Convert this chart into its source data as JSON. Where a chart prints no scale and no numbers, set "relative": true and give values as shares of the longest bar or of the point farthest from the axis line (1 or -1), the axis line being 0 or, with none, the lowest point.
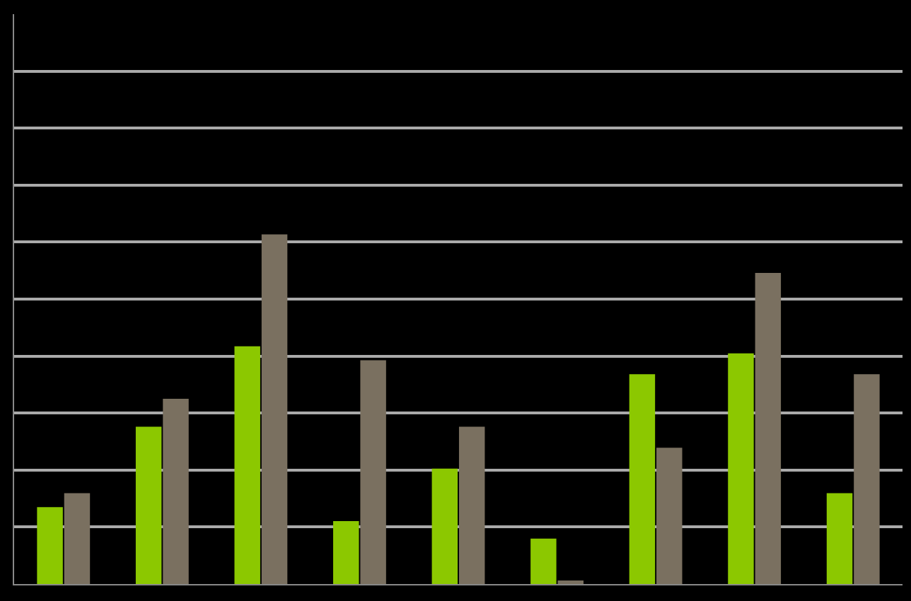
{
  "chart_data": {
    "type": "bar",
    "relative": true,
    "grid": "y",
    "categories": [
      null,
      null,
      null,
      null,
      null,
      null,
      null,
      null,
      null
    ],
    "series": [
      {
        "color": "#8cc800",
        "values": [
          0.22,
          0.45,
          0.68,
          0.18,
          0.33,
          0.13,
          0.6,
          0.66,
          0.26
        ]
      },
      {
        "color": "#7a7060",
        "values": [
          0.26,
          0.53,
          1,
          0.64,
          0.45,
          0.01,
          0.39,
          0.89,
          0.6
        ]
      }
    ]
  }
}
